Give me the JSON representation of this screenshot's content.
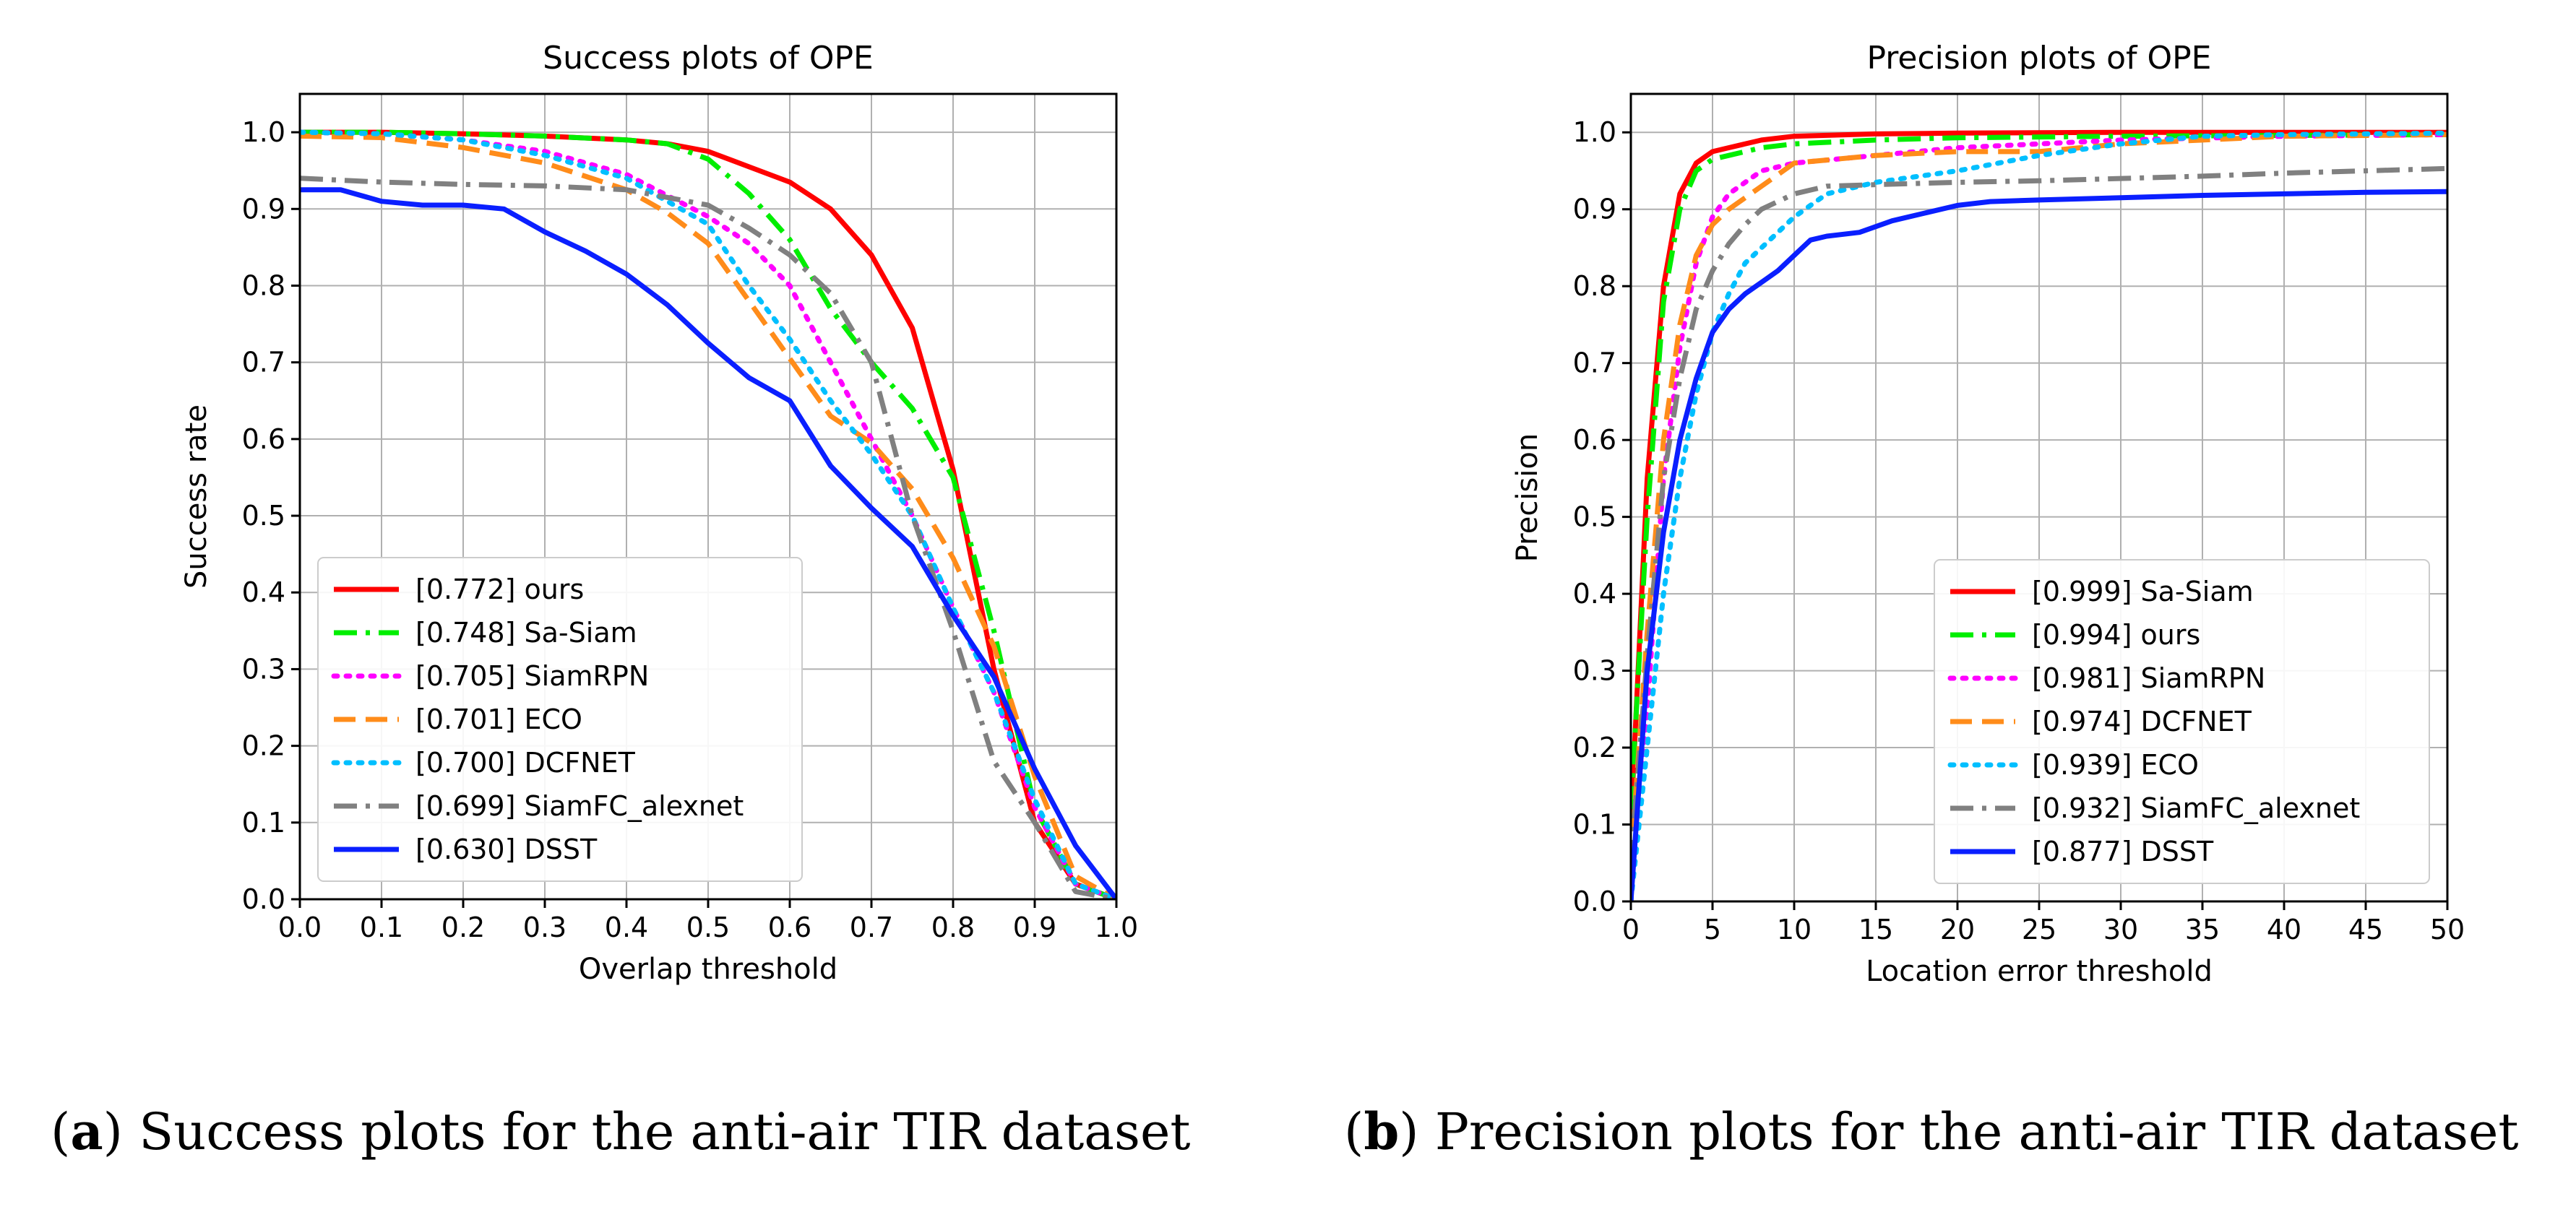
{
  "chart_data": [
    {
      "type": "line",
      "title": "Success plots of OPE",
      "xlabel": "Overlap threshold",
      "ylabel": "Success rate",
      "xlim": [
        0,
        1
      ],
      "ylim": [
        0,
        1.05
      ],
      "xticks": [
        0.0,
        0.1,
        0.2,
        0.3,
        0.4,
        0.5,
        0.6,
        0.7,
        0.8,
        0.9,
        1.0
      ],
      "yticks": [
        0.0,
        0.1,
        0.2,
        0.3,
        0.4,
        0.5,
        0.6,
        0.7,
        0.8,
        0.9,
        1.0
      ],
      "xtick_decimals": 1,
      "ytick_decimals": 1,
      "grid": true,
      "legend_position": "lower-left",
      "series": [
        {
          "name": "[0.772] ours",
          "color": "#ff0000",
          "style": "solid",
          "x": [
            0,
            0.1,
            0.2,
            0.3,
            0.4,
            0.45,
            0.5,
            0.55,
            0.6,
            0.65,
            0.7,
            0.75,
            0.8,
            0.85,
            0.9,
            0.95,
            1.0
          ],
          "y": [
            1.0,
            1.0,
            0.998,
            0.995,
            0.99,
            0.985,
            0.975,
            0.955,
            0.935,
            0.9,
            0.84,
            0.745,
            0.56,
            0.3,
            0.1,
            0.02,
            0.0
          ]
        },
        {
          "name": "[0.748] Sa-Siam",
          "color": "#00ee00",
          "style": "dashdot",
          "x": [
            0,
            0.1,
            0.2,
            0.3,
            0.4,
            0.45,
            0.5,
            0.55,
            0.6,
            0.65,
            0.7,
            0.75,
            0.8,
            0.85,
            0.9,
            0.95,
            1.0
          ],
          "y": [
            1.0,
            1.0,
            0.998,
            0.995,
            0.99,
            0.985,
            0.965,
            0.92,
            0.86,
            0.77,
            0.7,
            0.64,
            0.55,
            0.35,
            0.12,
            0.02,
            0.0
          ]
        },
        {
          "name": "[0.705] SiamRPN",
          "color": "#ff00ff",
          "style": "dotted",
          "x": [
            0,
            0.1,
            0.2,
            0.3,
            0.4,
            0.5,
            0.55,
            0.6,
            0.65,
            0.7,
            0.75,
            0.8,
            0.85,
            0.9,
            0.95,
            1.0
          ],
          "y": [
            1.0,
            0.998,
            0.99,
            0.975,
            0.945,
            0.89,
            0.855,
            0.8,
            0.7,
            0.6,
            0.5,
            0.38,
            0.27,
            0.12,
            0.02,
            0.0
          ]
        },
        {
          "name": "[0.701] ECO",
          "color": "#ff8c1a",
          "style": "dashed",
          "x": [
            0,
            0.1,
            0.2,
            0.3,
            0.4,
            0.45,
            0.5,
            0.55,
            0.6,
            0.65,
            0.7,
            0.75,
            0.8,
            0.85,
            0.9,
            0.95,
            1.0
          ],
          "y": [
            0.995,
            0.993,
            0.98,
            0.96,
            0.925,
            0.895,
            0.855,
            0.78,
            0.705,
            0.63,
            0.595,
            0.535,
            0.445,
            0.33,
            0.16,
            0.03,
            0.0
          ]
        },
        {
          "name": "[0.700] DCFNET",
          "color": "#00bfff",
          "style": "dotted",
          "x": [
            0,
            0.1,
            0.2,
            0.3,
            0.4,
            0.5,
            0.55,
            0.6,
            0.65,
            0.7,
            0.75,
            0.8,
            0.85,
            0.9,
            0.95,
            1.0
          ],
          "y": [
            1.0,
            0.998,
            0.99,
            0.97,
            0.94,
            0.88,
            0.8,
            0.73,
            0.65,
            0.58,
            0.5,
            0.38,
            0.27,
            0.13,
            0.02,
            0.0
          ]
        },
        {
          "name": "[0.699] SiamFC_alexnet",
          "color": "#808080",
          "style": "dashdot",
          "x": [
            0,
            0.1,
            0.2,
            0.3,
            0.4,
            0.5,
            0.55,
            0.6,
            0.65,
            0.7,
            0.75,
            0.8,
            0.85,
            0.9,
            0.95,
            1.0
          ],
          "y": [
            0.94,
            0.935,
            0.932,
            0.93,
            0.925,
            0.905,
            0.875,
            0.84,
            0.79,
            0.7,
            0.5,
            0.35,
            0.18,
            0.1,
            0.01,
            0.0
          ]
        },
        {
          "name": "[0.630] DSST",
          "color": "#0a1fff",
          "style": "solid",
          "x": [
            0,
            0.05,
            0.1,
            0.15,
            0.2,
            0.25,
            0.3,
            0.35,
            0.4,
            0.45,
            0.5,
            0.55,
            0.6,
            0.65,
            0.7,
            0.75,
            0.8,
            0.85,
            0.9,
            0.95,
            1.0
          ],
          "y": [
            0.925,
            0.925,
            0.91,
            0.905,
            0.905,
            0.9,
            0.87,
            0.845,
            0.815,
            0.775,
            0.725,
            0.68,
            0.65,
            0.565,
            0.51,
            0.46,
            0.37,
            0.29,
            0.17,
            0.07,
            0.0
          ]
        }
      ]
    },
    {
      "type": "line",
      "title": "Precision plots of OPE",
      "xlabel": "Location error threshold",
      "ylabel": "Precision",
      "xlim": [
        0,
        50
      ],
      "ylim": [
        0,
        1.05
      ],
      "xticks": [
        0,
        5,
        10,
        15,
        20,
        25,
        30,
        35,
        40,
        45,
        50
      ],
      "yticks": [
        0.0,
        0.1,
        0.2,
        0.3,
        0.4,
        0.5,
        0.6,
        0.7,
        0.8,
        0.9,
        1.0
      ],
      "xtick_decimals": 0,
      "ytick_decimals": 1,
      "grid": true,
      "legend_position": "lower-right",
      "series": [
        {
          "name": "[0.999] Sa-Siam",
          "color": "#ff0000",
          "style": "solid",
          "x": [
            0,
            1,
            2,
            3,
            4,
            5,
            6,
            8,
            10,
            15,
            20,
            30,
            40,
            50
          ],
          "y": [
            0.1,
            0.55,
            0.8,
            0.92,
            0.96,
            0.975,
            0.98,
            0.99,
            0.995,
            0.998,
            0.999,
            1.0,
            1.0,
            1.0
          ]
        },
        {
          "name": "[0.994] ours",
          "color": "#00ee00",
          "style": "dashdot",
          "x": [
            0,
            1,
            2,
            3,
            4,
            5,
            6,
            8,
            10,
            15,
            20,
            30,
            40,
            50
          ],
          "y": [
            0.12,
            0.5,
            0.78,
            0.9,
            0.95,
            0.965,
            0.97,
            0.98,
            0.985,
            0.99,
            0.993,
            0.995,
            0.996,
            0.997
          ]
        },
        {
          "name": "[0.981] SiamRPN",
          "color": "#ff00ff",
          "style": "dotted",
          "x": [
            0,
            1,
            2,
            3,
            4,
            5,
            6,
            8,
            10,
            15,
            20,
            30,
            40,
            50
          ],
          "y": [
            0.0,
            0.25,
            0.55,
            0.72,
            0.83,
            0.89,
            0.92,
            0.95,
            0.96,
            0.97,
            0.98,
            0.99,
            0.995,
            0.997
          ]
        },
        {
          "name": "[0.974] DCFNET",
          "color": "#ff8c1a",
          "style": "dashed",
          "x": [
            0,
            1,
            2,
            3,
            4,
            5,
            6,
            8,
            10,
            15,
            20,
            25,
            30,
            40,
            50
          ],
          "y": [
            0.05,
            0.35,
            0.6,
            0.75,
            0.84,
            0.88,
            0.9,
            0.93,
            0.96,
            0.97,
            0.975,
            0.975,
            0.985,
            0.995,
            0.997
          ]
        },
        {
          "name": "[0.939] ECO",
          "color": "#00bfff",
          "style": "dotted",
          "x": [
            0,
            1,
            2,
            3,
            4,
            5,
            6,
            7,
            8,
            10,
            12,
            15,
            20,
            25,
            30,
            35,
            40,
            50
          ],
          "y": [
            0.0,
            0.2,
            0.4,
            0.55,
            0.66,
            0.74,
            0.79,
            0.83,
            0.85,
            0.89,
            0.92,
            0.935,
            0.95,
            0.97,
            0.985,
            0.995,
            0.997,
            0.999
          ]
        },
        {
          "name": "[0.932] SiamFC_alexnet",
          "color": "#808080",
          "style": "dashdot",
          "x": [
            0,
            1,
            2,
            3,
            4,
            5,
            6,
            7,
            8,
            10,
            12,
            15,
            20,
            25,
            30,
            35,
            40,
            45,
            50
          ],
          "y": [
            0.05,
            0.32,
            0.55,
            0.68,
            0.77,
            0.82,
            0.855,
            0.88,
            0.9,
            0.92,
            0.93,
            0.932,
            0.935,
            0.937,
            0.94,
            0.943,
            0.947,
            0.95,
            0.953
          ]
        },
        {
          "name": "[0.877] DSST",
          "color": "#0a1fff",
          "style": "solid",
          "x": [
            0,
            1,
            2,
            3,
            4,
            5,
            6,
            7,
            8,
            9,
            10,
            11,
            12,
            14,
            16,
            18,
            20,
            22,
            25,
            30,
            35,
            40,
            45,
            50
          ],
          "y": [
            0.0,
            0.3,
            0.48,
            0.6,
            0.68,
            0.74,
            0.77,
            0.79,
            0.805,
            0.82,
            0.84,
            0.86,
            0.865,
            0.87,
            0.885,
            0.895,
            0.905,
            0.91,
            0.912,
            0.915,
            0.918,
            0.92,
            0.922,
            0.923
          ]
        }
      ]
    }
  ],
  "captions": [
    {
      "label": "a",
      "text": "Success plots for the anti-air TIR dataset"
    },
    {
      "label": "b",
      "text": "Precision plots for the anti-air TIR dataset"
    }
  ]
}
